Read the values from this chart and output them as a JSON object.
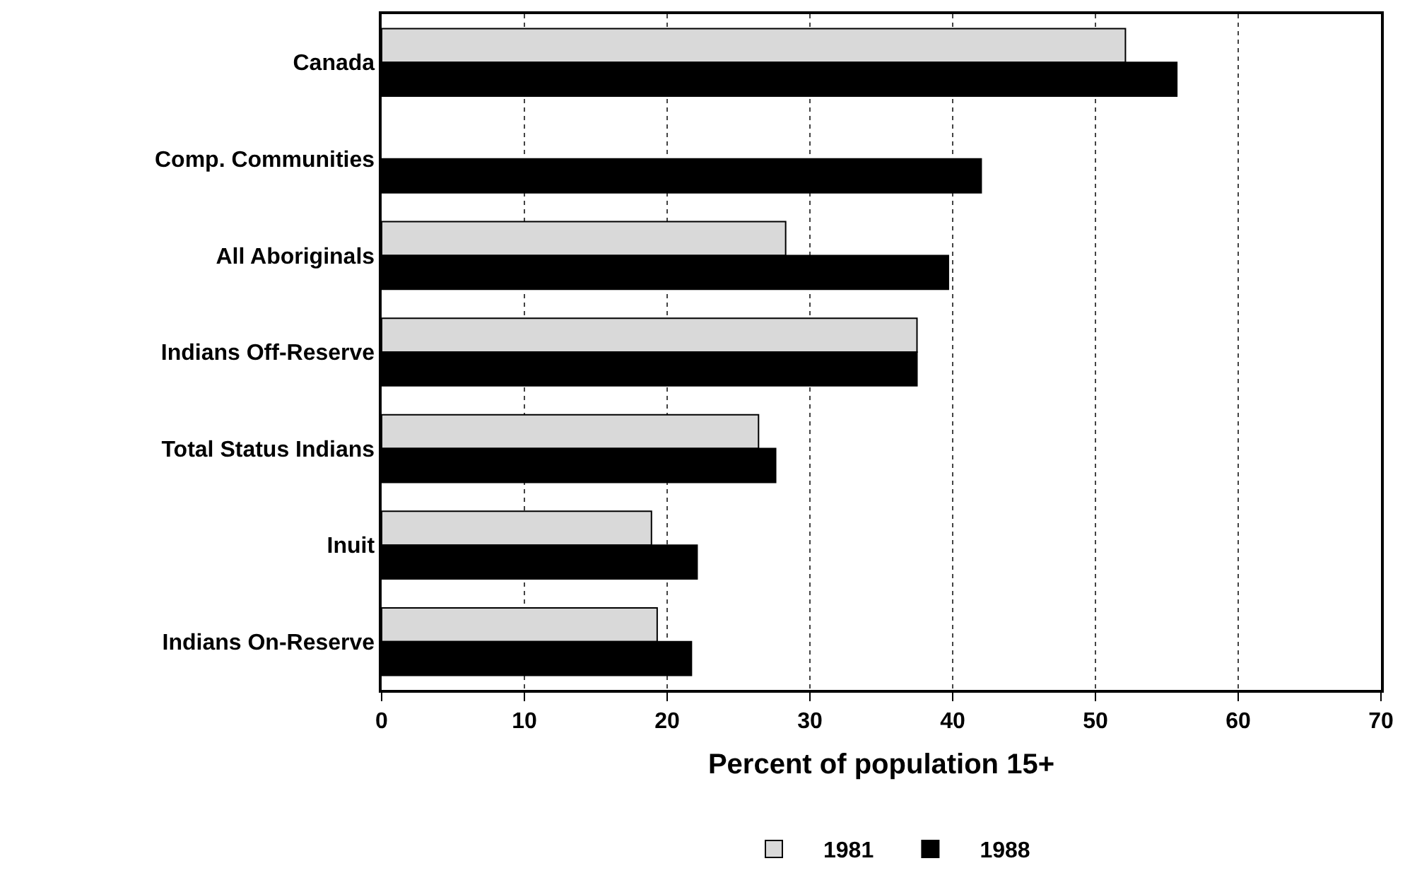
{
  "chart_data": {
    "type": "bar",
    "orientation": "horizontal",
    "xlabel": "Percent of population 15+",
    "categories": [
      "Canada",
      "Comp. Communities",
      "All Aboriginals",
      "Indians Off-Reserve",
      "Total Status Indians",
      "Inuit",
      "Indians On-Reserve"
    ],
    "series": [
      {
        "name": "1981",
        "color": "#d9d9d9",
        "values": [
          52.1,
          null,
          28.3,
          37.5,
          26.4,
          18.9,
          19.3
        ]
      },
      {
        "name": "1988",
        "color": "#000000",
        "values": [
          55.7,
          42.0,
          39.7,
          37.5,
          27.6,
          22.1,
          21.7
        ]
      }
    ],
    "xlim": [
      0,
      70
    ],
    "xticks": [
      0,
      10,
      20,
      30,
      40,
      50,
      60,
      70
    ],
    "grid": "x",
    "legend": "bottom"
  }
}
